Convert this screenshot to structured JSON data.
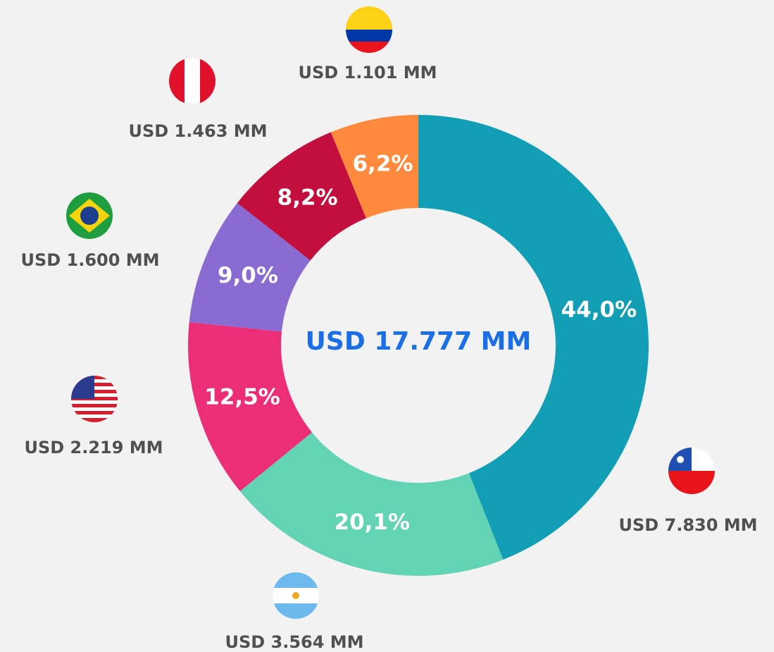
{
  "chart_data": {
    "type": "donut",
    "center_label": "USD 17.777 MM",
    "categories": [
      "USD 7.830 MM",
      "USD 3.564 MM",
      "USD 2.219 MM",
      "USD 1.600 MM",
      "USD 1.463 MM",
      "USD 1.101 MM"
    ],
    "values": [
      44.0,
      20.1,
      12.5,
      9.0,
      8.2,
      6.2
    ],
    "value_labels": [
      "44,0%",
      "20,1%",
      "12,5%",
      "9,0%",
      "8,2%",
      "6,2%"
    ],
    "colors": [
      "#129fb5",
      "#62d3b4",
      "#ec2d78",
      "#8a6bd1",
      "#c30f3e",
      "#ff8a3d"
    ]
  }
}
